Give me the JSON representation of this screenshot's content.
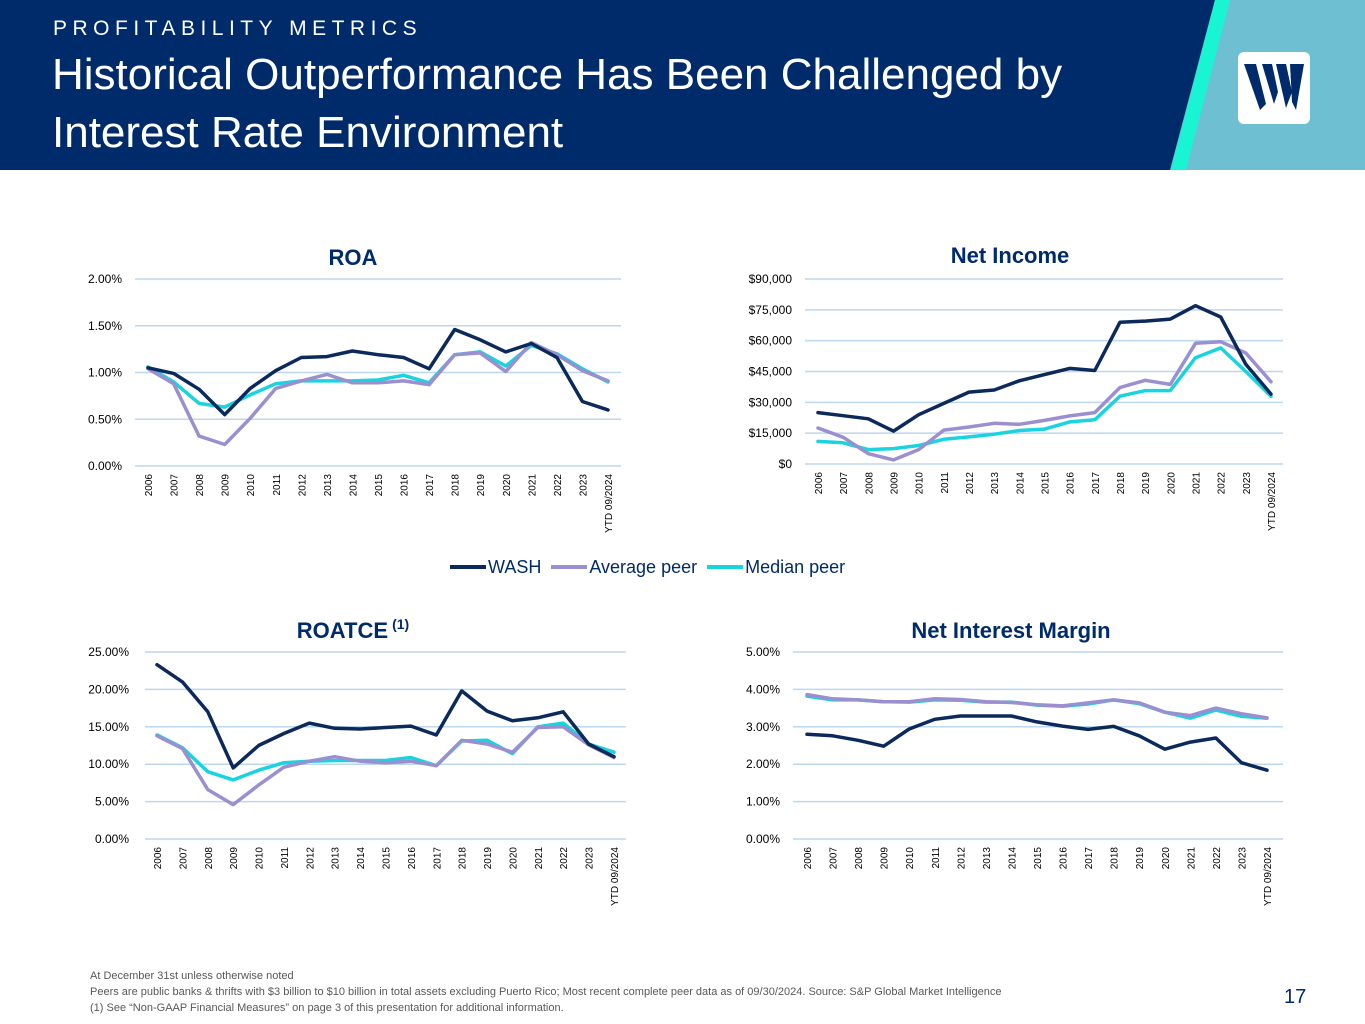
{
  "header": {
    "kicker": "PROFITABILITY METRICS",
    "title": "Historical Outperformance Has Been Challenged by Interest Rate Environment",
    "colors": {
      "navy": "#002B6B",
      "accent": "#19F5D2",
      "light_blue": "#6FBFD2"
    }
  },
  "logo": {
    "icon": "company-logo-icon"
  },
  "legend": [
    {
      "name": "WASH",
      "color": "#0B2A5B"
    },
    {
      "name": "Average peer",
      "color": "#9B8FD0"
    },
    {
      "name": "Median peer",
      "color": "#19D3DF"
    }
  ],
  "chart_data": [
    {
      "type": "line",
      "title": "ROA",
      "superscript": "",
      "xlabel": "",
      "ylabel": "",
      "categories": [
        "2006",
        "2007",
        "2008",
        "2009",
        "2010",
        "2011",
        "2012",
        "2013",
        "2014",
        "2015",
        "2016",
        "2017",
        "2018",
        "2019",
        "2020",
        "2021",
        "2022",
        "2023",
        "YTD 09/2024"
      ],
      "ylim": [
        0,
        2
      ],
      "yticks": [
        0,
        0.5,
        1.0,
        1.5,
        2.0
      ],
      "ytick_labels": [
        "0.00%",
        "0.50%",
        "1.00%",
        "1.50%",
        "2.00%"
      ],
      "grid": true,
      "series": [
        {
          "name": "WASH",
          "values": [
            1.05,
            0.99,
            0.82,
            0.55,
            0.83,
            1.02,
            1.16,
            1.17,
            1.23,
            1.19,
            1.16,
            1.04,
            1.46,
            1.35,
            1.22,
            1.31,
            1.16,
            0.69,
            0.6
          ]
        },
        {
          "name": "Average peer",
          "values": [
            1.04,
            0.88,
            0.32,
            0.23,
            0.51,
            0.83,
            0.91,
            0.98,
            0.89,
            0.89,
            0.91,
            0.87,
            1.19,
            1.21,
            1.01,
            1.32,
            1.19,
            1.02,
            0.91
          ]
        },
        {
          "name": "Median peer",
          "values": [
            1.06,
            0.9,
            0.67,
            0.63,
            0.76,
            0.88,
            0.91,
            0.91,
            0.91,
            0.92,
            0.97,
            0.89,
            1.19,
            1.22,
            1.07,
            1.29,
            1.2,
            1.04,
            0.9
          ]
        }
      ]
    },
    {
      "type": "line",
      "title": "Net Income",
      "superscript": "",
      "xlabel": "",
      "ylabel": "",
      "categories": [
        "2006",
        "2007",
        "2008",
        "2009",
        "2010",
        "2011",
        "2012",
        "2013",
        "2014",
        "2015",
        "2016",
        "2017",
        "2018",
        "2019",
        "2020",
        "2021",
        "2022",
        "2023",
        "YTD 09/2024"
      ],
      "ylim": [
        0,
        90000
      ],
      "yticks": [
        0,
        15000,
        30000,
        45000,
        60000,
        75000,
        90000
      ],
      "ytick_labels": [
        "$0",
        "$15,000",
        "$30,000",
        "$45,000",
        "$60,000",
        "$75,000",
        "$90,000"
      ],
      "grid": true,
      "series": [
        {
          "name": "WASH",
          "values": [
            25000,
            23500,
            22000,
            16000,
            24000,
            29500,
            35000,
            36000,
            40500,
            43500,
            46500,
            45500,
            69000,
            69500,
            70500,
            77000,
            71500,
            48500,
            34000
          ]
        },
        {
          "name": "Average peer",
          "values": [
            17500,
            13000,
            5000,
            2000,
            7000,
            16500,
            18000,
            19800,
            19300,
            21200,
            23400,
            25000,
            37200,
            40700,
            38700,
            58700,
            59500,
            54000,
            40000
          ]
        },
        {
          "name": "Median peer",
          "values": [
            11000,
            10300,
            7000,
            7500,
            9000,
            12000,
            13200,
            14500,
            16300,
            17000,
            20500,
            21500,
            33000,
            35700,
            35700,
            51700,
            56500,
            45000,
            33000
          ]
        }
      ]
    },
    {
      "type": "line",
      "title": "ROATCE",
      "superscript": "(1)",
      "xlabel": "",
      "ylabel": "",
      "categories": [
        "2006",
        "2007",
        "2008",
        "2009",
        "2010",
        "2011",
        "2012",
        "2013",
        "2014",
        "2015",
        "2016",
        "2017",
        "2018",
        "2019",
        "2020",
        "2021",
        "2022",
        "2023",
        "YTD 09/2024"
      ],
      "ylim": [
        0,
        25
      ],
      "yticks": [
        0,
        5,
        10,
        15,
        20,
        25
      ],
      "ytick_labels": [
        "0.00%",
        "5.00%",
        "10.00%",
        "15.00%",
        "20.00%",
        "25.00%"
      ],
      "grid": true,
      "series": [
        {
          "name": "WASH",
          "values": [
            23.3,
            21.0,
            17.0,
            9.5,
            12.5,
            14.1,
            15.5,
            14.8,
            14.7,
            14.9,
            15.1,
            13.9,
            19.8,
            17.1,
            15.8,
            16.2,
            17.0,
            12.7,
            11.0
          ]
        },
        {
          "name": "Average peer",
          "values": [
            13.8,
            12.1,
            6.6,
            4.6,
            7.2,
            9.6,
            10.4,
            11.0,
            10.4,
            10.2,
            10.4,
            9.8,
            13.2,
            12.7,
            11.6,
            14.9,
            15.0,
            12.6,
            10.9
          ]
        },
        {
          "name": "Median peer",
          "values": [
            13.9,
            12.2,
            9.0,
            7.9,
            9.2,
            10.2,
            10.4,
            10.5,
            10.5,
            10.5,
            10.9,
            9.8,
            13.1,
            13.2,
            11.4,
            15.0,
            15.5,
            12.7,
            11.6
          ]
        }
      ]
    },
    {
      "type": "line",
      "title": "Net Interest Margin",
      "superscript": "",
      "xlabel": "",
      "ylabel": "",
      "categories": [
        "2006",
        "2007",
        "2008",
        "2009",
        "2010",
        "2011",
        "2012",
        "2013",
        "2014",
        "2015",
        "2016",
        "2017",
        "2018",
        "2019",
        "2020",
        "2021",
        "2022",
        "2023",
        "YTD 09/2024"
      ],
      "ylim": [
        0,
        5
      ],
      "yticks": [
        0,
        1,
        2,
        3,
        4,
        5
      ],
      "ytick_labels": [
        "0.00%",
        "1.00%",
        "2.00%",
        "3.00%",
        "4.00%",
        "5.00%"
      ],
      "grid": true,
      "series": [
        {
          "name": "WASH",
          "values": [
            2.8,
            2.76,
            2.64,
            2.48,
            2.94,
            3.2,
            3.29,
            3.29,
            3.29,
            3.13,
            3.02,
            2.93,
            3.01,
            2.76,
            2.4,
            2.59,
            2.7,
            2.04,
            1.84
          ]
        },
        {
          "name": "Average peer",
          "values": [
            3.86,
            3.75,
            3.72,
            3.67,
            3.67,
            3.75,
            3.73,
            3.67,
            3.65,
            3.59,
            3.56,
            3.64,
            3.72,
            3.64,
            3.39,
            3.3,
            3.5,
            3.35,
            3.24
          ]
        },
        {
          "name": "Median peer",
          "values": [
            3.82,
            3.72,
            3.72,
            3.67,
            3.66,
            3.72,
            3.71,
            3.66,
            3.66,
            3.58,
            3.55,
            3.61,
            3.72,
            3.62,
            3.39,
            3.23,
            3.45,
            3.28,
            3.23
          ]
        }
      ]
    }
  ],
  "footnotes": [
    "At December 31st unless otherwise noted",
    "Peers are public banks & thrifts with $3 billion to $10 billion in total assets excluding Puerto Rico; Most recent complete peer data as of 09/30/2024. Source: S&P Global Market Intelligence",
    "(1) See “Non-GAAP Financial Measures” on page 3 of this presentation for additional information."
  ],
  "page_number": "17"
}
